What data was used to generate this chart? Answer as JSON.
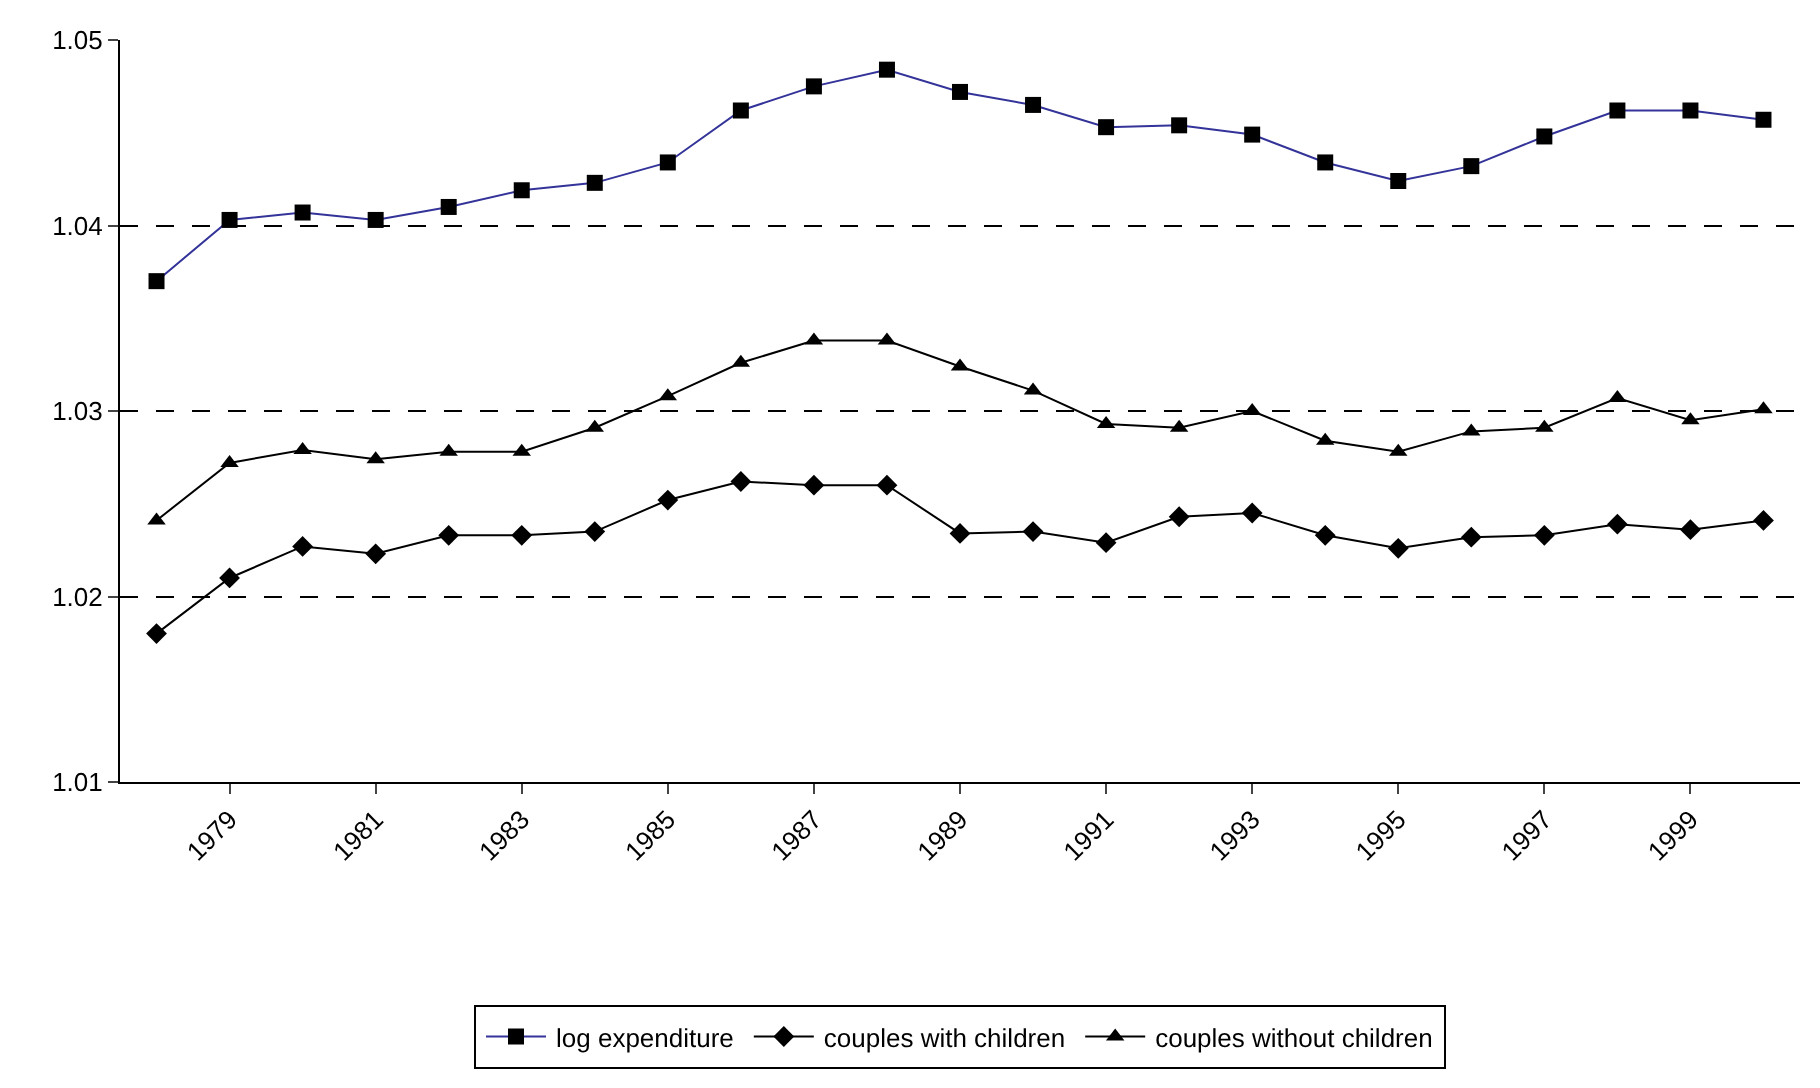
{
  "chart_data": {
    "type": "line",
    "categories": [
      null,
      "1979",
      null,
      "1981",
      null,
      "1983",
      null,
      "1985",
      null,
      "1987",
      null,
      "1989",
      null,
      "1991",
      null,
      "1993",
      null,
      "1995",
      null,
      "1997",
      null,
      "1999",
      null
    ],
    "series": [
      {
        "name": "log expenditure",
        "color": "#333399",
        "marker": "square",
        "values": [
          1.037,
          1.0403,
          1.0407,
          1.0403,
          1.041,
          1.0419,
          1.0423,
          1.0434,
          1.0462,
          1.0475,
          1.0484,
          1.0472,
          1.0465,
          1.0453,
          1.0454,
          1.0449,
          1.0434,
          1.0424,
          1.0432,
          1.0448,
          1.0462,
          1.0462,
          1.0457
        ]
      },
      {
        "name": "couples with children",
        "color": "#000000",
        "marker": "diamond",
        "values": [
          1.018,
          1.021,
          1.0227,
          1.0223,
          1.0233,
          1.0233,
          1.0235,
          1.0252,
          1.0262,
          1.026,
          1.026,
          1.0234,
          1.0235,
          1.0229,
          1.0243,
          1.0245,
          1.0233,
          1.0226,
          1.0232,
          1.0233,
          1.0239,
          1.0236,
          1.0241
        ]
      },
      {
        "name": "couples without children",
        "color": "#000000",
        "marker": "triangle",
        "values": [
          1.0241,
          1.0272,
          1.0279,
          1.0274,
          1.0278,
          1.0278,
          1.0291,
          1.0308,
          1.0326,
          1.0338,
          1.0338,
          1.0324,
          1.0311,
          1.0293,
          1.0291,
          1.03,
          1.0284,
          1.0278,
          1.0289,
          1.0291,
          1.0307,
          1.0295,
          1.0301
        ]
      }
    ],
    "ylim": [
      1.01,
      1.05
    ],
    "yticks": [
      1.01,
      1.02,
      1.03,
      1.04,
      1.05
    ],
    "grid": "y",
    "legend": "bottom",
    "line_style": "solid"
  }
}
